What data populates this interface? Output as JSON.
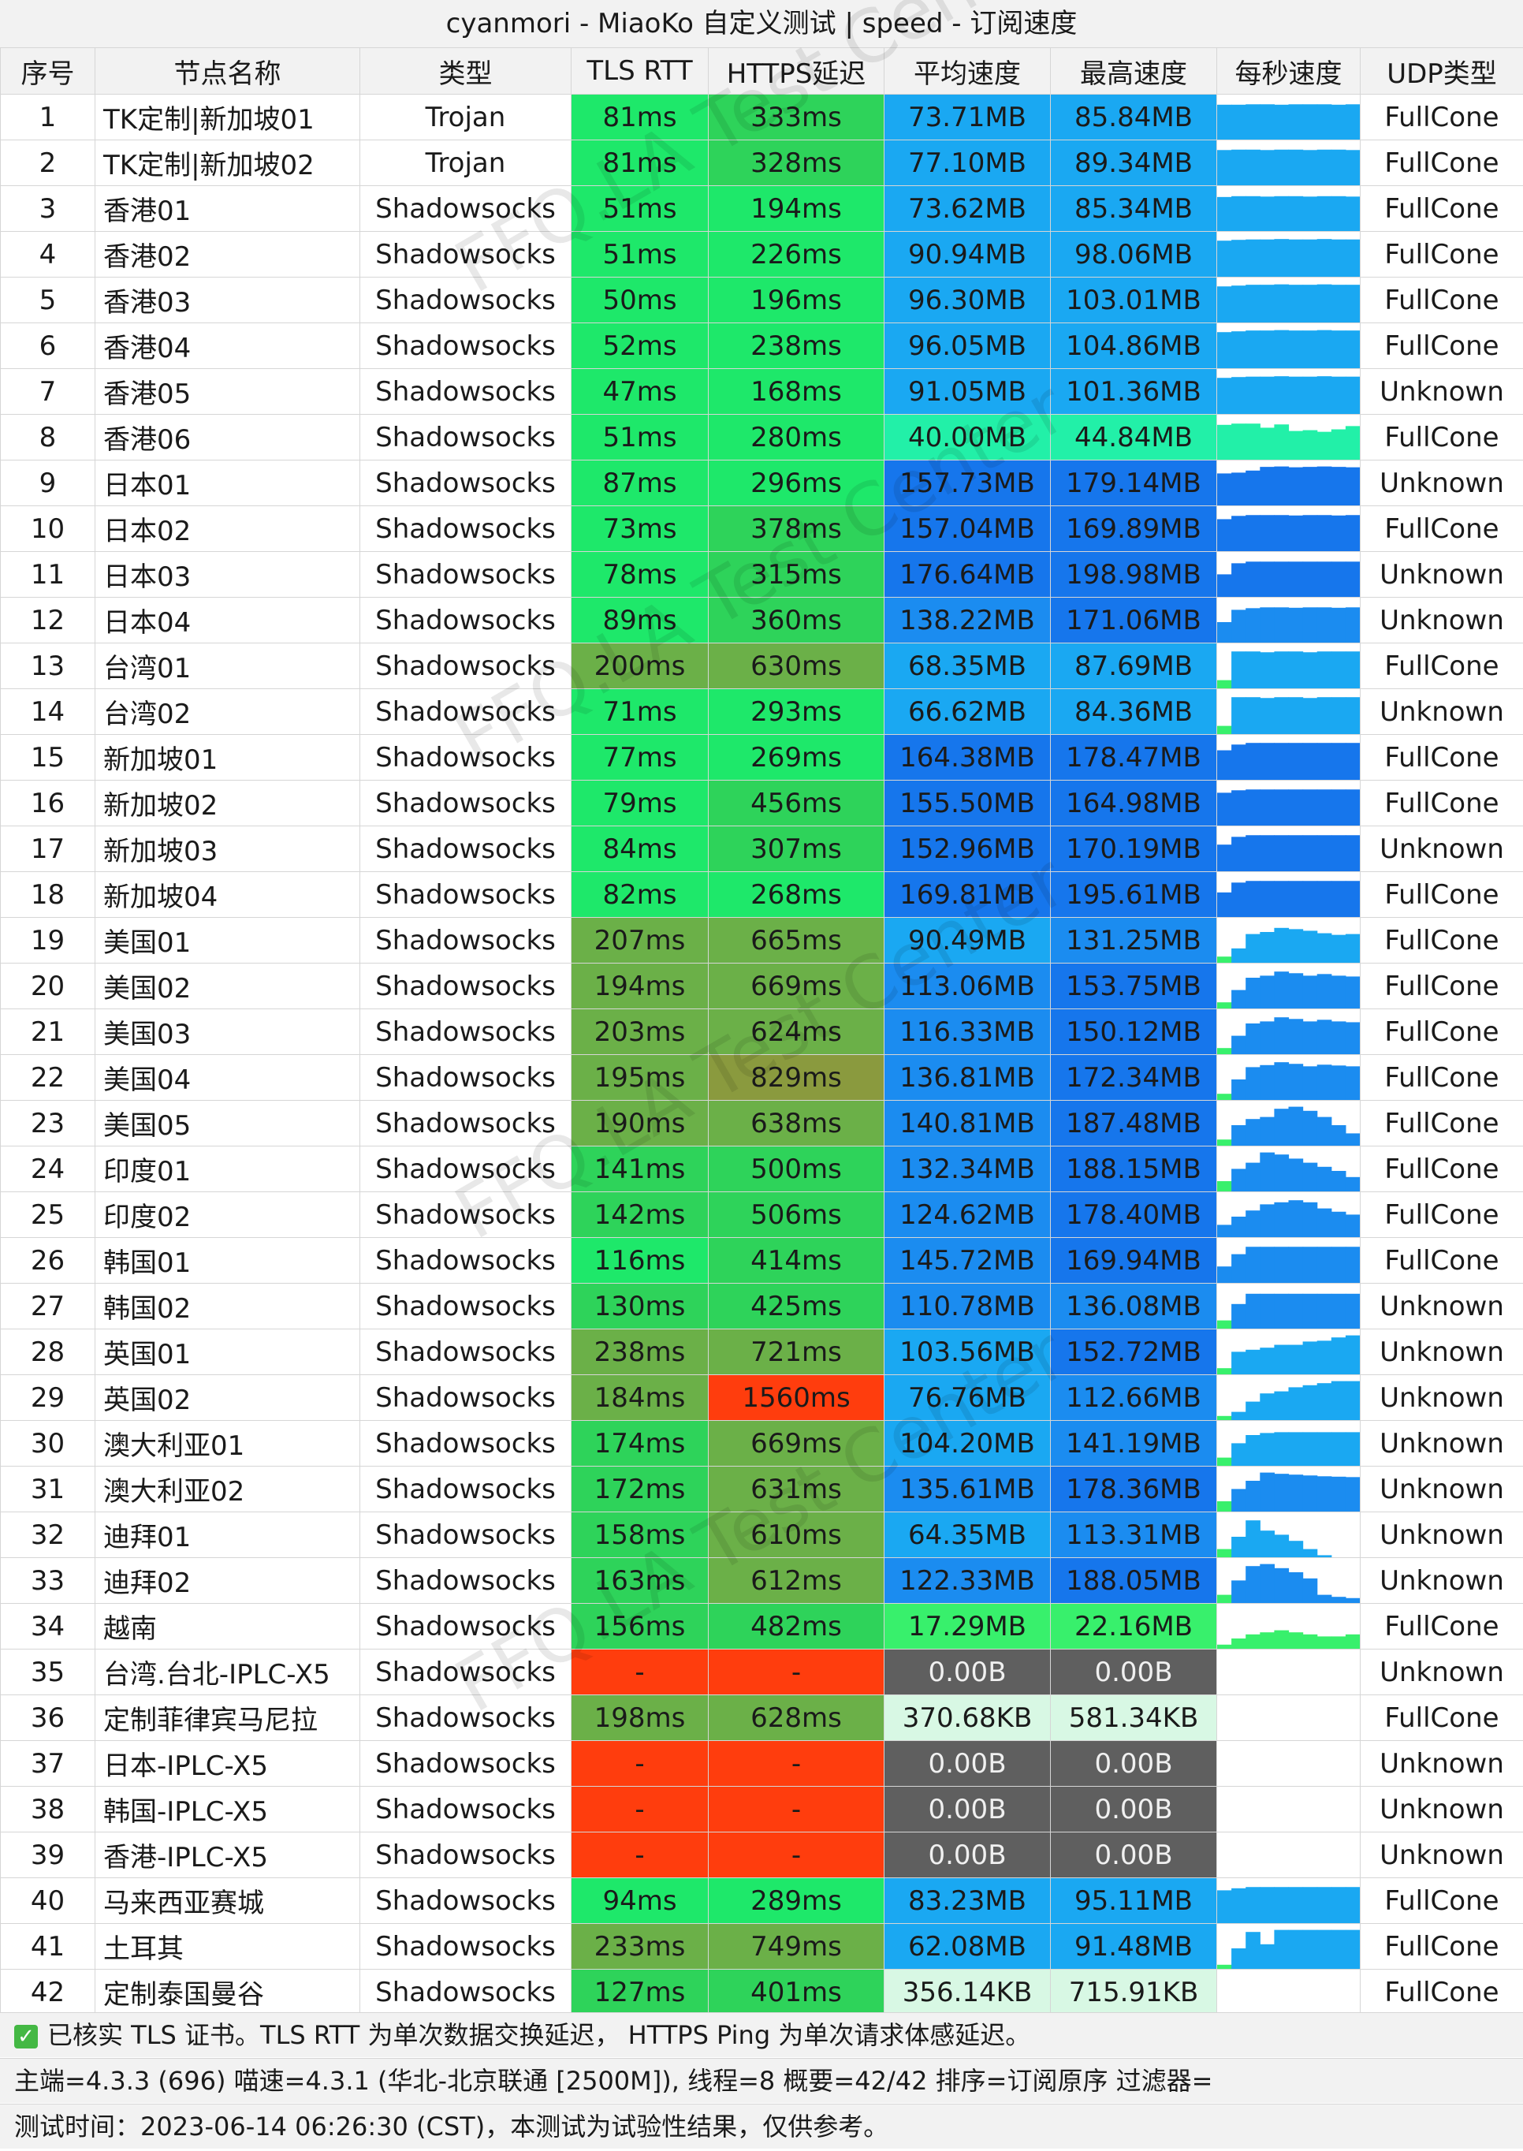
{
  "title": "cyanmori - MiaoKo 自定义测试 | speed - 订阅速度",
  "watermark": "FFQ.LA Test Center",
  "columns": [
    "序号",
    "节点名称",
    "类型",
    "TLS RTT",
    "HTTPS延迟",
    "平均速度",
    "最高速度",
    "每秒速度",
    "UDP类型"
  ],
  "colors": {
    "rtt_green": "#1ee86a",
    "rtt_mid": "#2ed35a",
    "rtt_olive": "#6bb048",
    "rtt_dark": "#8a9a3e",
    "fail_red": "#ff3d0d",
    "speed_light": "#1aa8f2",
    "speed_mid": "#1b8cf0",
    "speed_dark": "#1676ec",
    "speed_teal": "#22f0a8",
    "speed_green": "#38f06c",
    "speed_zero": "#5f5f5f",
    "speed_kb": "#d8f8e4"
  },
  "rows": [
    {
      "no": "1",
      "name": "TK定制|新加坡01",
      "type": "Trojan",
      "rtt": "81ms",
      "https": "333ms",
      "avg": "73.71MB",
      "max": "85.84MB",
      "udp": "FullCone",
      "spark": [
        0.85,
        0.85,
        0.86,
        0.86,
        0.85,
        0.86,
        0.86,
        0.86,
        0.85,
        0.86
      ]
    },
    {
      "no": "2",
      "name": "TK定制|新加坡02",
      "type": "Trojan",
      "rtt": "81ms",
      "https": "328ms",
      "avg": "77.10MB",
      "max": "89.34MB",
      "udp": "FullCone",
      "spark": [
        0.86,
        0.87,
        0.87,
        0.86,
        0.87,
        0.87,
        0.86,
        0.87,
        0.87,
        0.86
      ]
    },
    {
      "no": "3",
      "name": "香港01",
      "type": "Shadowsocks",
      "rtt": "51ms",
      "https": "194ms",
      "avg": "73.62MB",
      "max": "85.34MB",
      "udp": "FullCone",
      "spark": [
        0.83,
        0.85,
        0.85,
        0.84,
        0.85,
        0.85,
        0.84,
        0.85,
        0.85,
        0.84
      ]
    },
    {
      "no": "4",
      "name": "香港02",
      "type": "Shadowsocks",
      "rtt": "51ms",
      "https": "226ms",
      "avg": "90.94MB",
      "max": "98.06MB",
      "udp": "FullCone",
      "spark": [
        0.88,
        0.9,
        0.91,
        0.91,
        0.92,
        0.91,
        0.91,
        0.92,
        0.91,
        0.91
      ]
    },
    {
      "no": "5",
      "name": "香港03",
      "type": "Shadowsocks",
      "rtt": "50ms",
      "https": "196ms",
      "avg": "96.30MB",
      "max": "103.01MB",
      "udp": "FullCone",
      "spark": [
        0.88,
        0.9,
        0.92,
        0.92,
        0.93,
        0.92,
        0.92,
        0.93,
        0.92,
        0.92
      ]
    },
    {
      "no": "6",
      "name": "香港04",
      "type": "Shadowsocks",
      "rtt": "52ms",
      "https": "238ms",
      "avg": "96.05MB",
      "max": "104.86MB",
      "udp": "FullCone",
      "spark": [
        0.88,
        0.9,
        0.92,
        0.92,
        0.93,
        0.92,
        0.92,
        0.93,
        0.92,
        0.92
      ]
    },
    {
      "no": "7",
      "name": "香港05",
      "type": "Shadowsocks",
      "rtt": "47ms",
      "https": "168ms",
      "avg": "91.05MB",
      "max": "101.36MB",
      "udp": "Unknown",
      "spark": [
        0.88,
        0.9,
        0.91,
        0.91,
        0.92,
        0.91,
        0.91,
        0.92,
        0.91,
        0.91
      ]
    },
    {
      "no": "8",
      "name": "香港06",
      "type": "Shadowsocks",
      "rtt": "51ms",
      "https": "280ms",
      "avg": "40.00MB",
      "max": "44.84MB",
      "udp": "FullCone",
      "spark": [
        0.85,
        0.88,
        0.88,
        0.78,
        0.86,
        0.7,
        0.72,
        0.68,
        0.74,
        0.82
      ]
    },
    {
      "no": "9",
      "name": "日本01",
      "type": "Shadowsocks",
      "rtt": "87ms",
      "https": "296ms",
      "avg": "157.73MB",
      "max": "179.14MB",
      "udp": "Unknown",
      "spark": [
        0.78,
        0.8,
        0.85,
        0.94,
        0.95,
        0.93,
        0.94,
        0.95,
        0.94,
        0.93
      ]
    },
    {
      "no": "10",
      "name": "日本02",
      "type": "Shadowsocks",
      "rtt": "73ms",
      "https": "378ms",
      "avg": "157.04MB",
      "max": "169.89MB",
      "udp": "FullCone",
      "spark": [
        0.78,
        0.86,
        0.88,
        0.88,
        0.88,
        0.87,
        0.88,
        0.88,
        0.87,
        0.88
      ]
    },
    {
      "no": "11",
      "name": "日本03",
      "type": "Shadowsocks",
      "rtt": "78ms",
      "https": "315ms",
      "avg": "176.64MB",
      "max": "198.98MB",
      "udp": "Unknown",
      "spark": [
        0.55,
        0.82,
        0.86,
        0.86,
        0.86,
        0.86,
        0.86,
        0.86,
        0.86,
        0.86
      ]
    },
    {
      "no": "12",
      "name": "日本04",
      "type": "Shadowsocks",
      "rtt": "89ms",
      "https": "360ms",
      "avg": "138.22MB",
      "max": "171.06MB",
      "udp": "Unknown",
      "spark": [
        0.5,
        0.8,
        0.84,
        0.86,
        0.86,
        0.85,
        0.86,
        0.86,
        0.85,
        0.86
      ]
    },
    {
      "no": "13",
      "name": "台湾01",
      "type": "Shadowsocks",
      "rtt": "200ms",
      "https": "630ms",
      "avg": "68.35MB",
      "max": "87.69MB",
      "udp": "FullCone",
      "spark": [
        0.2,
        0.9,
        0.9,
        0.88,
        0.9,
        0.9,
        0.88,
        0.9,
        0.9,
        0.9
      ]
    },
    {
      "no": "14",
      "name": "台湾02",
      "type": "Shadowsocks",
      "rtt": "71ms",
      "https": "293ms",
      "avg": "66.62MB",
      "max": "84.36MB",
      "udp": "Unknown",
      "spark": [
        0.2,
        0.9,
        0.9,
        0.88,
        0.9,
        0.9,
        0.88,
        0.9,
        0.9,
        0.9
      ]
    },
    {
      "no": "15",
      "name": "新加坡01",
      "type": "Shadowsocks",
      "rtt": "77ms",
      "https": "269ms",
      "avg": "164.38MB",
      "max": "178.47MB",
      "udp": "FullCone",
      "spark": [
        0.72,
        0.86,
        0.9,
        0.9,
        0.9,
        0.9,
        0.9,
        0.9,
        0.9,
        0.9
      ]
    },
    {
      "no": "16",
      "name": "新加坡02",
      "type": "Shadowsocks",
      "rtt": "79ms",
      "https": "456ms",
      "avg": "155.50MB",
      "max": "164.98MB",
      "udp": "FullCone",
      "spark": [
        0.8,
        0.86,
        0.88,
        0.88,
        0.88,
        0.88,
        0.88,
        0.88,
        0.88,
        0.88
      ]
    },
    {
      "no": "17",
      "name": "新加坡03",
      "type": "Shadowsocks",
      "rtt": "84ms",
      "https": "307ms",
      "avg": "152.96MB",
      "max": "170.19MB",
      "udp": "Unknown",
      "spark": [
        0.65,
        0.84,
        0.88,
        0.88,
        0.88,
        0.88,
        0.88,
        0.88,
        0.88,
        0.88
      ]
    },
    {
      "no": "18",
      "name": "新加坡04",
      "type": "Shadowsocks",
      "rtt": "82ms",
      "https": "268ms",
      "avg": "169.81MB",
      "max": "195.61MB",
      "udp": "FullCone",
      "spark": [
        0.6,
        0.84,
        0.88,
        0.88,
        0.88,
        0.88,
        0.88,
        0.88,
        0.88,
        0.88
      ]
    },
    {
      "no": "19",
      "name": "美国01",
      "type": "Shadowsocks",
      "rtt": "207ms",
      "https": "665ms",
      "avg": "90.49MB",
      "max": "131.25MB",
      "udp": "FullCone",
      "spark": [
        0.15,
        0.35,
        0.7,
        0.75,
        0.85,
        0.82,
        0.78,
        0.72,
        0.68,
        0.7
      ]
    },
    {
      "no": "20",
      "name": "美国02",
      "type": "Shadowsocks",
      "rtt": "194ms",
      "https": "669ms",
      "avg": "113.06MB",
      "max": "153.75MB",
      "udp": "FullCone",
      "spark": [
        0.15,
        0.45,
        0.75,
        0.8,
        0.9,
        0.86,
        0.8,
        0.84,
        0.8,
        0.78
      ]
    },
    {
      "no": "21",
      "name": "美国03",
      "type": "Shadowsocks",
      "rtt": "203ms",
      "https": "624ms",
      "avg": "116.33MB",
      "max": "150.12MB",
      "udp": "FullCone",
      "spark": [
        0.15,
        0.45,
        0.75,
        0.8,
        0.9,
        0.86,
        0.8,
        0.84,
        0.8,
        0.78
      ]
    },
    {
      "no": "22",
      "name": "美国04",
      "type": "Shadowsocks",
      "rtt": "195ms",
      "https": "829ms",
      "avg": "136.81MB",
      "max": "172.34MB",
      "udp": "FullCone",
      "spark": [
        0.15,
        0.5,
        0.8,
        0.85,
        0.92,
        0.88,
        0.82,
        0.86,
        0.84,
        0.82
      ]
    },
    {
      "no": "23",
      "name": "美国05",
      "type": "Shadowsocks",
      "rtt": "190ms",
      "https": "638ms",
      "avg": "140.81MB",
      "max": "187.48MB",
      "udp": "FullCone",
      "spark": [
        0.15,
        0.5,
        0.65,
        0.7,
        0.9,
        0.95,
        0.85,
        0.7,
        0.5,
        0.3
      ]
    },
    {
      "no": "24",
      "name": "印度01",
      "type": "Shadowsocks",
      "rtt": "141ms",
      "https": "500ms",
      "avg": "132.34MB",
      "max": "188.15MB",
      "udp": "FullCone",
      "spark": [
        0.25,
        0.55,
        0.7,
        0.95,
        0.9,
        0.8,
        0.7,
        0.6,
        0.5,
        0.35
      ]
    },
    {
      "no": "25",
      "name": "印度02",
      "type": "Shadowsocks",
      "rtt": "142ms",
      "https": "506ms",
      "avg": "124.62MB",
      "max": "178.40MB",
      "udp": "FullCone",
      "spark": [
        0.3,
        0.5,
        0.65,
        0.8,
        0.85,
        0.9,
        0.85,
        0.7,
        0.62,
        0.55
      ]
    },
    {
      "no": "26",
      "name": "韩国01",
      "type": "Shadowsocks",
      "rtt": "116ms",
      "https": "414ms",
      "avg": "145.72MB",
      "max": "169.94MB",
      "udp": "FullCone",
      "spark": [
        0.4,
        0.7,
        0.88,
        0.88,
        0.88,
        0.88,
        0.88,
        0.88,
        0.88,
        0.88
      ]
    },
    {
      "no": "27",
      "name": "韩国02",
      "type": "Shadowsocks",
      "rtt": "130ms",
      "https": "425ms",
      "avg": "110.78MB",
      "max": "136.08MB",
      "udp": "Unknown",
      "spark": [
        0.2,
        0.6,
        0.85,
        0.85,
        0.85,
        0.85,
        0.85,
        0.85,
        0.85,
        0.85
      ]
    },
    {
      "no": "28",
      "name": "英国01",
      "type": "Shadowsocks",
      "rtt": "238ms",
      "https": "721ms",
      "avg": "103.56MB",
      "max": "152.72MB",
      "udp": "Unknown",
      "spark": [
        0.15,
        0.55,
        0.6,
        0.65,
        0.72,
        0.72,
        0.8,
        0.82,
        0.9,
        0.95
      ]
    },
    {
      "no": "29",
      "name": "英国02",
      "type": "Shadowsocks",
      "rtt": "184ms",
      "https": "1560ms",
      "avg": "76.76MB",
      "max": "112.66MB",
      "udp": "Unknown",
      "spark": [
        0.1,
        0.2,
        0.45,
        0.65,
        0.7,
        0.8,
        0.85,
        0.9,
        0.95,
        0.95
      ]
    },
    {
      "no": "30",
      "name": "澳大利亚01",
      "type": "Shadowsocks",
      "rtt": "174ms",
      "https": "669ms",
      "avg": "104.20MB",
      "max": "141.19MB",
      "udp": "Unknown",
      "spark": [
        0.2,
        0.55,
        0.75,
        0.8,
        0.82,
        0.82,
        0.82,
        0.82,
        0.82,
        0.82
      ]
    },
    {
      "no": "31",
      "name": "澳大利亚02",
      "type": "Shadowsocks",
      "rtt": "172ms",
      "https": "631ms",
      "avg": "135.61MB",
      "max": "178.36MB",
      "udp": "Unknown",
      "spark": [
        0.25,
        0.55,
        0.75,
        0.95,
        0.92,
        0.9,
        0.88,
        0.86,
        0.85,
        0.84
      ]
    },
    {
      "no": "32",
      "name": "迪拜01",
      "type": "Shadowsocks",
      "rtt": "158ms",
      "https": "610ms",
      "avg": "64.35MB",
      "max": "113.31MB",
      "udp": "Unknown",
      "spark": [
        0.2,
        0.5,
        0.9,
        0.65,
        0.55,
        0.4,
        0.2,
        0.05,
        0.0,
        0.0
      ]
    },
    {
      "no": "33",
      "name": "迪拜02",
      "type": "Shadowsocks",
      "rtt": "163ms",
      "https": "612ms",
      "avg": "122.33MB",
      "max": "188.05MB",
      "udp": "Unknown",
      "spark": [
        0.2,
        0.55,
        0.9,
        0.95,
        0.85,
        0.75,
        0.6,
        0.2,
        0.15,
        0.12
      ]
    },
    {
      "no": "34",
      "name": "越南",
      "type": "Shadowsocks",
      "rtt": "156ms",
      "https": "482ms",
      "avg": "17.29MB",
      "max": "22.16MB",
      "udp": "FullCone",
      "spark": [
        0.1,
        0.25,
        0.35,
        0.4,
        0.45,
        0.4,
        0.35,
        0.3,
        0.3,
        0.35
      ]
    },
    {
      "no": "35",
      "name": "台湾.台北-IPLC-X5",
      "type": "Shadowsocks",
      "rtt": "-",
      "https": "-",
      "avg": "0.00B",
      "max": "0.00B",
      "udp": "Unknown",
      "spark": []
    },
    {
      "no": "36",
      "name": "定制菲律宾马尼拉",
      "type": "Shadowsocks",
      "rtt": "198ms",
      "https": "628ms",
      "avg": "370.68KB",
      "max": "581.34KB",
      "udp": "FullCone",
      "spark": []
    },
    {
      "no": "37",
      "name": "日本-IPLC-X5",
      "type": "Shadowsocks",
      "rtt": "-",
      "https": "-",
      "avg": "0.00B",
      "max": "0.00B",
      "udp": "Unknown",
      "spark": []
    },
    {
      "no": "38",
      "name": "韩国-IPLC-X5",
      "type": "Shadowsocks",
      "rtt": "-",
      "https": "-",
      "avg": "0.00B",
      "max": "0.00B",
      "udp": "Unknown",
      "spark": []
    },
    {
      "no": "39",
      "name": "香港-IPLC-X5",
      "type": "Shadowsocks",
      "rtt": "-",
      "https": "-",
      "avg": "0.00B",
      "max": "0.00B",
      "udp": "Unknown",
      "spark": []
    },
    {
      "no": "40",
      "name": "马来西亚赛城",
      "type": "Shadowsocks",
      "rtt": "94ms",
      "https": "289ms",
      "avg": "83.23MB",
      "max": "95.11MB",
      "udp": "FullCone",
      "spark": [
        0.8,
        0.85,
        0.88,
        0.88,
        0.88,
        0.88,
        0.88,
        0.88,
        0.88,
        0.88
      ]
    },
    {
      "no": "41",
      "name": "土耳其",
      "type": "Shadowsocks",
      "rtt": "233ms",
      "https": "749ms",
      "avg": "62.08MB",
      "max": "91.48MB",
      "udp": "FullCone",
      "spark": [
        0.1,
        0.5,
        0.9,
        0.6,
        0.95,
        0.95,
        0.95,
        0.95,
        0.95,
        0.95
      ]
    },
    {
      "no": "42",
      "name": "定制泰国曼谷",
      "type": "Shadowsocks",
      "rtt": "127ms",
      "https": "401ms",
      "avg": "356.14KB",
      "max": "715.91KB",
      "udp": "FullCone",
      "spark": []
    }
  ],
  "footer": {
    "check_icon": "check-icon",
    "line1": "已核实 TLS 证书。TLS RTT 为单次数据交换延迟， HTTPS Ping 为单次请求体感延迟。",
    "line2": "主端=4.3.3 (696) 喵速=4.3.1 (华北-北京联通 [2500M]), 线程=8 概要=42/42 排序=订阅原序 过滤器=",
    "line3": "测试时间：2023-06-14 06:26:30 (CST)，本测试为试验性结果，仅供参考。"
  }
}
